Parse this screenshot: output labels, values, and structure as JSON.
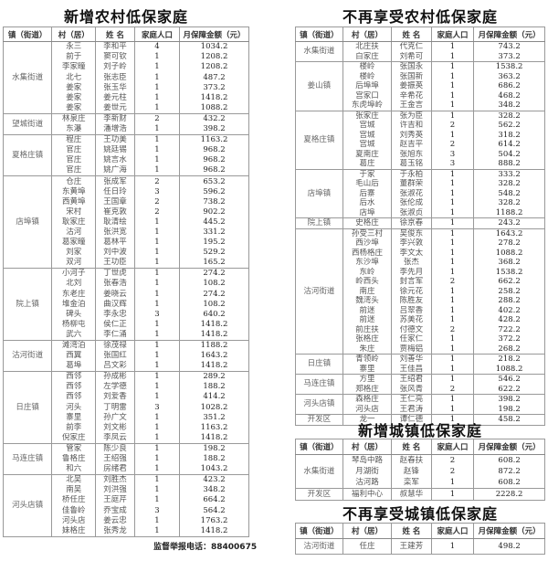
{
  "columns": [
    "镇（街道）",
    "村（居）",
    "姓 名",
    "家庭人口",
    "月保障金额（元）"
  ],
  "tables": [
    {
      "title": "新增农村低保家庭",
      "groups": [
        {
          "town": "水集街道",
          "rows": [
            [
              "永三",
              "李和平",
              "4",
              "1034.2"
            ],
            [
              "前于",
              "窦可钦",
              "1",
              "1208.2"
            ],
            [
              "李家疃",
              "刘子岭",
              "1",
              "1208.2"
            ],
            [
              "北七",
              "张志臣",
              "1",
              "487.2"
            ],
            [
              "姜家",
              "张玉华",
              "1",
              "373.2"
            ],
            [
              "姜家",
              "姜元柱",
              "1",
              "1418.2"
            ],
            [
              "姜家",
              "姜世元",
              "1",
              "1088.2"
            ]
          ]
        },
        {
          "town": "望城街道",
          "rows": [
            [
              "林泉庄",
              "李新财",
              "2",
              "432.2"
            ],
            [
              "东瀑",
              "潘增浩",
              "1",
              "398.2"
            ]
          ]
        },
        {
          "town": "夏格庄镇",
          "rows": [
            [
              "程庄",
              "王功美",
              "1",
              "1163.2"
            ],
            [
              "官庄",
              "姚廷锡",
              "1",
              "968.2"
            ],
            [
              "官庄",
              "姚言水",
              "1",
              "968.2"
            ],
            [
              "官庄",
              "姚广海",
              "1",
              "968.2"
            ]
          ]
        },
        {
          "town": "店埠镇",
          "rows": [
            [
              "仓庄",
              "张成军",
              "2",
              "653.2"
            ],
            [
              "东黄埠",
              "任日玲",
              "3",
              "596.2"
            ],
            [
              "西黄埠",
              "王国章",
              "2",
              "738.2"
            ],
            [
              "宋村",
              "崔克敦",
              "2",
              "902.2"
            ],
            [
              "耿家庄",
              "耿清绘",
              "1",
              "445.2"
            ],
            [
              "沽河",
              "张洪宽",
              "1",
              "331.2"
            ],
            [
              "葛家疃",
              "葛林平",
              "1",
              "195.2"
            ],
            [
              "刘家",
              "刘中波",
              "1",
              "529.2"
            ],
            [
              "双河",
              "王功臣",
              "1",
              "165.2"
            ]
          ]
        },
        {
          "town": "院上镇",
          "rows": [
            [
              "小河子",
              "丁世虎",
              "1",
              "274.2"
            ],
            [
              "北刘",
              "张春浩",
              "1",
              "108.2"
            ],
            [
              "东老庄",
              "姜晓云",
              "1",
              "274.2"
            ],
            [
              "堆金泊",
              "曲汉辉",
              "1",
              "108.2"
            ],
            [
              "碑头",
              "李永忠",
              "3",
              "640.2"
            ],
            [
              "杨柳屯",
              "侯仁正",
              "1",
              "1418.2"
            ],
            [
              "武六",
              "李仁涌",
              "1",
              "1418.2"
            ]
          ]
        },
        {
          "town": "沽河街道",
          "rows": [
            [
              "滩湾泊",
              "徐茂禄",
              "1",
              "1188.2"
            ],
            [
              "西翼",
              "张国红",
              "1",
              "1643.2"
            ],
            [
              "葛埠",
              "吕文彩",
              "1",
              "1418.2"
            ]
          ]
        },
        {
          "town": "日庄镇",
          "rows": [
            [
              "西邻",
              "孙成彬",
              "1",
              "289.2"
            ],
            [
              "西邻",
              "左学德",
              "1",
              "188.2"
            ],
            [
              "西邻",
              "刘爱香",
              "1",
              "414.2"
            ],
            [
              "河头",
              "丁明雷",
              "3",
              "1028.2"
            ],
            [
              "寨里",
              "孙广文",
              "1",
              "351.2"
            ],
            [
              "前李",
              "刘文彬",
              "1",
              "1163.2"
            ],
            [
              "倪家庄",
              "李凤云",
              "1",
              "1418.2"
            ]
          ]
        },
        {
          "town": "马连庄镇",
          "rows": [
            [
              "管家",
              "陈少良",
              "1",
              "198.2"
            ],
            [
              "鲁格庄",
              "王绍强",
              "1",
              "188.2"
            ],
            [
              "和六",
              "房绪君",
              "1",
              "1043.2"
            ]
          ]
        },
        {
          "town": "河头店镇",
          "rows": [
            [
              "北吴",
              "刘胜杰",
              "1",
              "423.2"
            ],
            [
              "南吴",
              "刘洪强",
              "1",
              "348.2"
            ],
            [
              "桥任庄",
              "王庭芹",
              "1",
              "664.2"
            ],
            [
              "佳鲁岭",
              "乔宝成",
              "3",
              "564.2"
            ],
            [
              "河头店",
              "姜云忠",
              "1",
              "1763.2"
            ],
            [
              "妹格庄",
              "张秀龙",
              "1",
              "1418.2"
            ]
          ]
        }
      ]
    },
    {
      "title": "不再享受农村低保家庭",
      "groups": [
        {
          "town": "水集街道",
          "rows": [
            [
              "北庄扶",
              "代克仁",
              "1",
              "743.2"
            ],
            [
              "白家庄",
              "刘希可",
              "1",
              "373.2"
            ]
          ]
        },
        {
          "town": "姜山镇",
          "rows": [
            [
              "楼岭",
              "张国永",
              "1",
              "1538.2"
            ],
            [
              "楼岭",
              "张国新",
              "1",
              "363.2"
            ],
            [
              "后埠埠",
              "姜振英",
              "1",
              "686.2"
            ],
            [
              "宫家口",
              "辛希花",
              "1",
              "468.2"
            ],
            [
              "东虎埠岭",
              "王金言",
              "1",
              "348.2"
            ]
          ]
        },
        {
          "town": "夏格庄镇",
          "rows": [
            [
              "张家庄",
              "张为臣",
              "1",
              "328.2"
            ],
            [
              "宫城",
              "许吉和",
              "2",
              "562.2"
            ],
            [
              "宫城",
              "刘秀英",
              "1",
              "318.2"
            ],
            [
              "宫城",
              "赵吉平",
              "2",
              "614.2"
            ],
            [
              "夏南庄",
              "张旭东",
              "3",
              "504.2"
            ],
            [
              "葛庄",
              "葛玉铭",
              "3",
              "888.2"
            ]
          ]
        },
        {
          "town": "店埠镇",
          "rows": [
            [
              "于家",
              "于永柏",
              "1",
              "333.2"
            ],
            [
              "毛山后",
              "董群荣",
              "1",
              "328.2"
            ],
            [
              "后寨",
              "张淑花",
              "1",
              "548.2"
            ],
            [
              "后水",
              "张伦成",
              "1",
              "328.2"
            ],
            [
              "店埠",
              "张淑贞",
              "1",
              "1188.2"
            ]
          ]
        },
        {
          "town": "院上镇",
          "rows": [
            [
              "史格庄",
              "徐京春",
              "1",
              "243.2"
            ]
          ]
        },
        {
          "town": "沽河街道",
          "rows": [
            [
              "孙受三村",
              "吴俊东",
              "1",
              "1643.2"
            ],
            [
              "西沙埠",
              "李兴敦",
              "1",
              "278.2"
            ],
            [
              "西杨格庄",
              "李文太",
              "1",
              "1088.2"
            ],
            [
              "东沙埠",
              "张杰",
              "1",
              "368.2"
            ],
            [
              "东岭",
              "李先月",
              "1",
              "1538.2"
            ],
            [
              "岭西头",
              "封言军",
              "2",
              "662.2"
            ],
            [
              "南庄",
              "徐元花",
              "1",
              "258.2"
            ],
            [
              "魏湾头",
              "陈胜友",
              "1",
              "288.2"
            ],
            [
              "前迷",
              "吕翠香",
              "1",
              "402.2"
            ],
            [
              "前迷",
              "苏美花",
              "1",
              "428.2"
            ],
            [
              "前庄扶",
              "付德文",
              "2",
              "722.2"
            ],
            [
              "张格庄",
              "任家仁",
              "1",
              "372.2"
            ],
            [
              "朱庄",
              "贾梅铝",
              "1",
              "268.2"
            ]
          ]
        },
        {
          "town": "日庄镇",
          "rows": [
            [
              "青领岭",
              "刘善华",
              "1",
              "218.2"
            ],
            [
              "寨里",
              "王佳昌",
              "1",
              "1088.2"
            ]
          ]
        },
        {
          "town": "马连庄镇",
          "rows": [
            [
              "方里",
              "王绍君",
              "1",
              "546.2"
            ],
            [
              "郑格庄",
              "张风青",
              "2",
              "622.2"
            ]
          ]
        },
        {
          "town": "河头店镇",
          "rows": [
            [
              "森格庄",
              "王仁亮",
              "1",
              "398.2"
            ],
            [
              "河头店",
              "王君涛",
              "1",
              "198.2"
            ]
          ]
        },
        {
          "town": "开发区",
          "rows": [
            [
              "龙一",
              "谭仁德",
              "1",
              "458.2"
            ]
          ]
        }
      ]
    },
    {
      "title": "新增城镇低保家庭",
      "groups": [
        {
          "town": "水集街道",
          "rows": [
            [
              "琴岛中路",
              "赵春扶",
              "2",
              "608.2"
            ],
            [
              "月湖街",
              "赵锋",
              "2",
              "872.2"
            ],
            [
              "沽河路",
              "栾军",
              "1",
              "608.2"
            ]
          ]
        },
        {
          "town": "开发区",
          "rows": [
            [
              "福利中心",
              "叔慧华",
              "1",
              "2228.2"
            ]
          ]
        }
      ]
    },
    {
      "title": "不再享受城镇低保家庭",
      "groups": [
        {
          "town": "沽河街道",
          "rows": [
            [
              "任庄",
              "王建芳",
              "1",
              "498.2"
            ]
          ]
        }
      ]
    }
  ],
  "footer": "监督举报电话：88400675"
}
